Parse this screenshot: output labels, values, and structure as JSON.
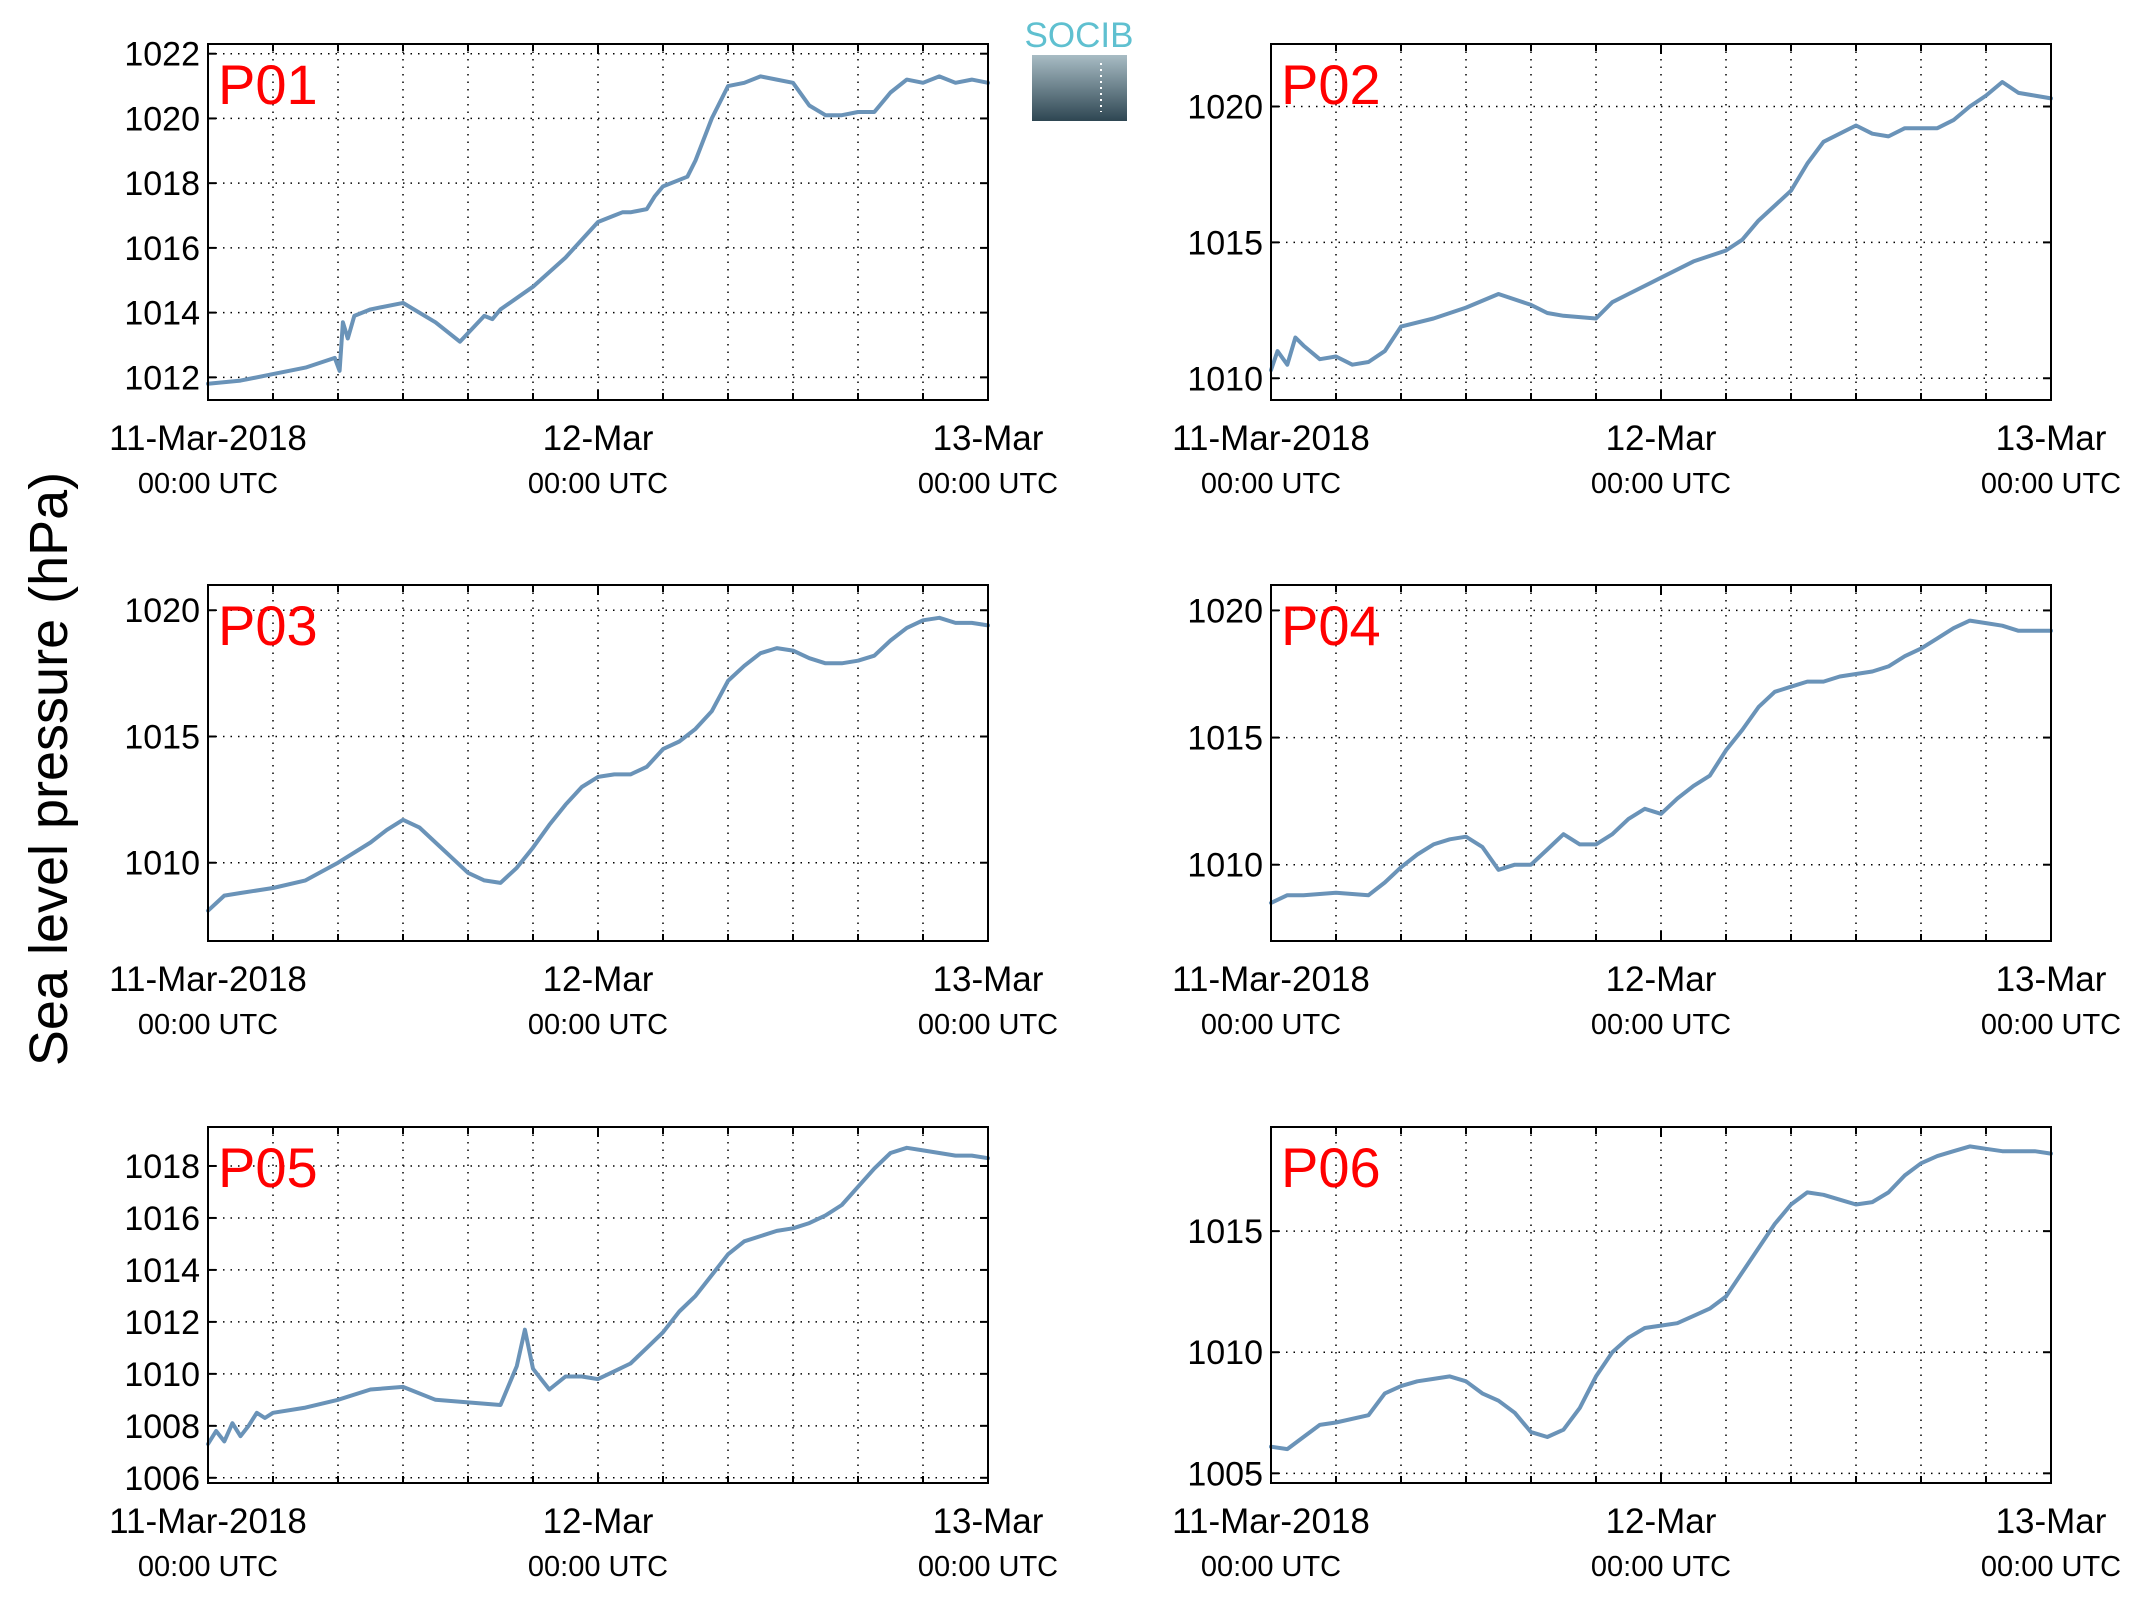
{
  "figure": {
    "ylabel": "Sea level pressure (hPa)",
    "logo_text": "SOCIB",
    "colors": {
      "line": "#6a93b8",
      "panel_label": "#ff0000",
      "axis": "#000000",
      "logo_text": "#5fc0d0",
      "logo_top": "#a8bcc4",
      "logo_bottom": "#2e4652"
    }
  },
  "chart_data": [
    {
      "type": "line",
      "label": "P01",
      "x_ticks": [
        {
          "line1": "11-Mar-2018",
          "line2": "00:00 UTC"
        },
        {
          "line1": "12-Mar",
          "line2": "00:00 UTC"
        },
        {
          "line1": "13-Mar",
          "line2": "00:00 UTC"
        }
      ],
      "xlim": [
        "2018-03-11 00:00",
        "2018-03-13 00:00"
      ],
      "grid": true,
      "ylim": [
        1011.3,
        1022.3
      ],
      "yticks": [
        1012,
        1014,
        1016,
        1018,
        1020,
        1022
      ],
      "series": [
        {
          "x_hours": [
            0,
            2,
            4,
            6,
            7.8,
            8.1,
            8.3,
            8.6,
            9,
            10,
            12,
            14,
            15.5,
            17,
            17.5,
            18,
            20,
            22,
            24,
            25,
            25.5,
            26,
            27,
            27.5,
            28,
            29.5,
            30,
            31,
            32,
            33,
            34,
            35,
            36,
            37,
            38,
            39,
            40,
            41,
            42,
            43,
            44,
            45,
            46,
            47,
            48
          ],
          "y": [
            1011.8,
            1011.9,
            1012.1,
            1012.3,
            1012.6,
            1012.2,
            1013.7,
            1013.2,
            1013.9,
            1014.1,
            1014.3,
            1013.7,
            1013.1,
            1013.9,
            1013.8,
            1014.1,
            1014.8,
            1015.7,
            1016.8,
            1017.0,
            1017.1,
            1017.1,
            1017.2,
            1017.6,
            1017.9,
            1018.2,
            1018.7,
            1020.0,
            1021.0,
            1021.1,
            1021.3,
            1021.2,
            1021.1,
            1020.4,
            1020.1,
            1020.1,
            1020.2,
            1020.2,
            1020.8,
            1021.2,
            1021.1,
            1021.3,
            1021.1,
            1021.2,
            1021.1
          ]
        }
      ]
    },
    {
      "type": "line",
      "label": "P02",
      "x_ticks": [
        {
          "line1": "11-Mar-2018",
          "line2": "00:00 UTC"
        },
        {
          "line1": "12-Mar",
          "line2": "00:00 UTC"
        },
        {
          "line1": "13-Mar",
          "line2": "00:00 UTC"
        }
      ],
      "xlim": [
        "2018-03-11 00:00",
        "2018-03-13 00:00"
      ],
      "grid": true,
      "ylim": [
        1009.2,
        1022.3
      ],
      "yticks": [
        1010,
        1015,
        1020
      ],
      "series": [
        {
          "x_hours": [
            0,
            0.4,
            1,
            1.5,
            2,
            3,
            4,
            5,
            6,
            7,
            8,
            10,
            12,
            14,
            16,
            17,
            18,
            20,
            21,
            22,
            24,
            26,
            28,
            29,
            30,
            32,
            33,
            34,
            36,
            37,
            38,
            39,
            40,
            41,
            42,
            43,
            44,
            45,
            46,
            47,
            48
          ],
          "y": [
            1010.3,
            1011.0,
            1010.5,
            1011.5,
            1011.2,
            1010.7,
            1010.8,
            1010.5,
            1010.6,
            1011.0,
            1011.9,
            1012.2,
            1012.6,
            1013.1,
            1012.7,
            1012.4,
            1012.3,
            1012.2,
            1012.8,
            1013.1,
            1013.7,
            1014.3,
            1014.7,
            1015.1,
            1015.8,
            1016.9,
            1017.9,
            1018.7,
            1019.3,
            1019.0,
            1018.9,
            1019.2,
            1019.2,
            1019.2,
            1019.5,
            1020.0,
            1020.4,
            1020.9,
            1020.5,
            1020.4,
            1020.3
          ]
        }
      ]
    },
    {
      "type": "line",
      "label": "P03",
      "x_ticks": [
        {
          "line1": "11-Mar-2018",
          "line2": "00:00 UTC"
        },
        {
          "line1": "12-Mar",
          "line2": "00:00 UTC"
        },
        {
          "line1": "13-Mar",
          "line2": "00:00 UTC"
        }
      ],
      "xlim": [
        "2018-03-11 00:00",
        "2018-03-13 00:00"
      ],
      "grid": true,
      "ylim": [
        1006.9,
        1021.0
      ],
      "yticks": [
        1010,
        1015,
        1020
      ],
      "series": [
        {
          "x_hours": [
            0,
            1,
            2,
            4,
            6,
            8,
            10,
            11,
            12,
            13,
            14,
            15,
            16,
            17,
            18,
            19,
            20,
            21,
            22,
            23,
            24,
            25,
            26,
            27,
            28,
            29,
            30,
            31,
            32,
            33,
            34,
            35,
            36,
            37,
            38,
            39,
            40,
            41,
            42,
            43,
            44,
            45,
            46,
            47,
            48
          ],
          "y": [
            1008.1,
            1008.7,
            1008.8,
            1009.0,
            1009.3,
            1010.0,
            1010.8,
            1011.3,
            1011.7,
            1011.4,
            1010.8,
            1010.2,
            1009.6,
            1009.3,
            1009.2,
            1009.8,
            1010.6,
            1011.5,
            1012.3,
            1013.0,
            1013.4,
            1013.5,
            1013.5,
            1013.8,
            1014.5,
            1014.8,
            1015.3,
            1016.0,
            1017.2,
            1017.8,
            1018.3,
            1018.5,
            1018.4,
            1018.1,
            1017.9,
            1017.9,
            1018.0,
            1018.2,
            1018.8,
            1019.3,
            1019.6,
            1019.7,
            1019.5,
            1019.5,
            1019.4
          ]
        }
      ]
    },
    {
      "type": "line",
      "label": "P04",
      "x_ticks": [
        {
          "line1": "11-Mar-2018",
          "line2": "00:00 UTC"
        },
        {
          "line1": "12-Mar",
          "line2": "00:00 UTC"
        },
        {
          "line1": "13-Mar",
          "line2": "00:00 UTC"
        }
      ],
      "xlim": [
        "2018-03-11 00:00",
        "2018-03-13 00:00"
      ],
      "grid": true,
      "ylim": [
        1007.0,
        1021.0
      ],
      "yticks": [
        1010,
        1015,
        1020
      ],
      "series": [
        {
          "x_hours": [
            0,
            1,
            2,
            4,
            6,
            7,
            8,
            9,
            10,
            11,
            12,
            13,
            14,
            15,
            16,
            17,
            18,
            19,
            20,
            21,
            22,
            23,
            24,
            25,
            26,
            27,
            28,
            29,
            30,
            31,
            32,
            33,
            34,
            35,
            36,
            37,
            38,
            39,
            40,
            41,
            42,
            43,
            44,
            45,
            46,
            47,
            48
          ],
          "y": [
            1008.5,
            1008.8,
            1008.8,
            1008.9,
            1008.8,
            1009.3,
            1009.9,
            1010.4,
            1010.8,
            1011.0,
            1011.1,
            1010.7,
            1009.8,
            1010.0,
            1010.0,
            1010.6,
            1011.2,
            1010.8,
            1010.8,
            1011.2,
            1011.8,
            1012.2,
            1012.0,
            1012.6,
            1013.1,
            1013.5,
            1014.5,
            1015.3,
            1016.2,
            1016.8,
            1017.0,
            1017.2,
            1017.2,
            1017.4,
            1017.5,
            1017.6,
            1017.8,
            1018.2,
            1018.5,
            1018.9,
            1019.3,
            1019.6,
            1019.5,
            1019.4,
            1019.2,
            1019.2,
            1019.2
          ]
        }
      ]
    },
    {
      "type": "line",
      "label": "P05",
      "x_ticks": [
        {
          "line1": "11-Mar-2018",
          "line2": "00:00 UTC"
        },
        {
          "line1": "12-Mar",
          "line2": "00:00 UTC"
        },
        {
          "line1": "13-Mar",
          "line2": "00:00 UTC"
        }
      ],
      "xlim": [
        "2018-03-11 00:00",
        "2018-03-13 00:00"
      ],
      "grid": true,
      "ylim": [
        1005.8,
        1019.5
      ],
      "yticks": [
        1006,
        1008,
        1010,
        1012,
        1014,
        1016,
        1018
      ],
      "series": [
        {
          "x_hours": [
            0,
            0.5,
            1,
            1.5,
            2,
            2.5,
            3,
            3.5,
            4,
            6,
            8,
            10,
            12,
            14,
            16,
            18,
            19,
            19.5,
            20,
            20.5,
            21,
            22,
            23,
            24,
            25,
            26,
            27,
            28,
            29,
            30,
            31,
            32,
            33,
            34,
            35,
            36,
            37,
            38,
            39,
            40,
            41,
            42,
            43,
            44,
            45,
            46,
            47,
            48
          ],
          "y": [
            1007.3,
            1007.8,
            1007.4,
            1008.1,
            1007.6,
            1008.0,
            1008.5,
            1008.3,
            1008.5,
            1008.7,
            1009.0,
            1009.4,
            1009.5,
            1009.0,
            1008.9,
            1008.8,
            1010.3,
            1011.7,
            1010.2,
            1009.8,
            1009.4,
            1009.9,
            1009.9,
            1009.8,
            1010.1,
            1010.4,
            1011.0,
            1011.6,
            1012.4,
            1013.0,
            1013.8,
            1014.6,
            1015.1,
            1015.3,
            1015.5,
            1015.6,
            1015.8,
            1016.1,
            1016.5,
            1017.2,
            1017.9,
            1018.5,
            1018.7,
            1018.6,
            1018.5,
            1018.4,
            1018.4,
            1018.3
          ]
        }
      ]
    },
    {
      "type": "line",
      "label": "P06",
      "x_ticks": [
        {
          "line1": "11-Mar-2018",
          "line2": "00:00 UTC"
        },
        {
          "line1": "12-Mar",
          "line2": "00:00 UTC"
        },
        {
          "line1": "13-Mar",
          "line2": "00:00 UTC"
        }
      ],
      "xlim": [
        "2018-03-11 00:00",
        "2018-03-13 00:00"
      ],
      "grid": true,
      "ylim": [
        1004.6,
        1019.3
      ],
      "yticks": [
        1005,
        1010,
        1015
      ],
      "series": [
        {
          "x_hours": [
            0,
            1,
            2,
            3,
            4,
            6,
            7,
            8,
            9,
            10,
            11,
            12,
            13,
            14,
            15,
            16,
            17,
            18,
            19,
            20,
            21,
            22,
            23,
            24,
            25,
            26,
            27,
            28,
            29,
            30,
            31,
            32,
            33,
            34,
            35,
            36,
            37,
            38,
            39,
            40,
            41,
            42,
            43,
            44,
            45,
            46,
            47,
            48
          ],
          "y": [
            1006.1,
            1006.0,
            1006.5,
            1007.0,
            1007.1,
            1007.4,
            1008.3,
            1008.6,
            1008.8,
            1008.9,
            1009.0,
            1008.8,
            1008.3,
            1008.0,
            1007.5,
            1006.7,
            1006.5,
            1006.8,
            1007.7,
            1009.0,
            1010.0,
            1010.6,
            1011.0,
            1011.1,
            1011.2,
            1011.5,
            1011.8,
            1012.3,
            1013.3,
            1014.3,
            1015.3,
            1016.1,
            1016.6,
            1016.5,
            1016.3,
            1016.1,
            1016.2,
            1016.6,
            1017.3,
            1017.8,
            1018.1,
            1018.3,
            1018.5,
            1018.4,
            1018.3,
            1018.3,
            1018.3,
            1018.2
          ]
        }
      ]
    }
  ]
}
